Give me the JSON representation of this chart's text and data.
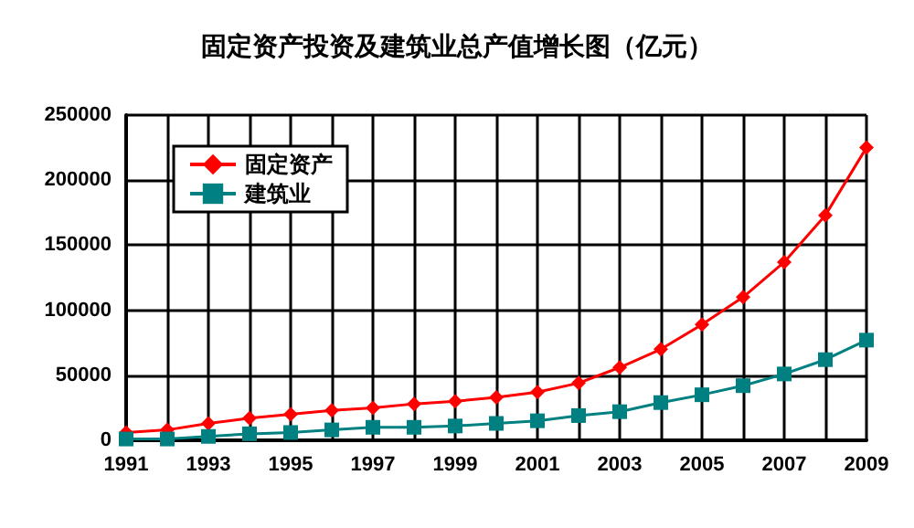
{
  "chart_data": {
    "type": "line",
    "title": "固定资产投资及建筑业总产值增长图（亿元）",
    "categories": [
      "1991",
      null,
      "1993",
      null,
      "1995",
      null,
      "1997",
      null,
      "1999",
      null,
      "2001",
      null,
      "2003",
      null,
      "2005",
      null,
      "2007",
      null,
      "2009"
    ],
    "series": [
      {
        "name": "固定资产",
        "color": "#ff0000",
        "marker": "diamond",
        "values": [
          6000,
          8000,
          13000,
          17000,
          20000,
          23000,
          25000,
          28000,
          30000,
          33000,
          37000,
          44000,
          56000,
          70000,
          89000,
          110000,
          137000,
          173000,
          225000
        ]
      },
      {
        "name": "建筑业",
        "color": "#008080",
        "marker": "square",
        "values": [
          1000,
          1000,
          3000,
          5000,
          6000,
          8000,
          10000,
          10000,
          11000,
          13000,
          15000,
          19000,
          22000,
          29000,
          35000,
          42000,
          51000,
          62000,
          77000
        ]
      }
    ],
    "ylim": [
      0,
      250000
    ],
    "yticks": [
      0,
      50000,
      100000,
      150000,
      200000,
      250000
    ],
    "grid": true,
    "legend": "top left",
    "line_style": "solid"
  }
}
